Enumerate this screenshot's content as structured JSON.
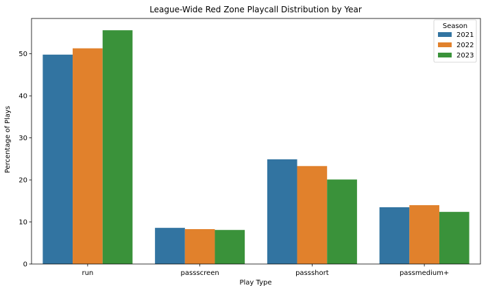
{
  "chart_data": {
    "type": "bar",
    "title": "League-Wide Red Zone Playcall Distribution by Year",
    "xlabel": "Play Type",
    "ylabel": "Percentage of Plays",
    "categories": [
      "run",
      "passscreen",
      "passshort",
      "passmedium+"
    ],
    "series": [
      {
        "name": "2021",
        "color": "#3274a1",
        "values": [
          49.8,
          8.6,
          24.9,
          13.5
        ]
      },
      {
        "name": "2022",
        "color": "#e1812c",
        "values": [
          51.3,
          8.3,
          23.3,
          14.0
        ]
      },
      {
        "name": "2023",
        "color": "#3a923a",
        "values": [
          55.6,
          8.1,
          20.1,
          12.4
        ]
      }
    ],
    "ylim": [
      0,
      58.4
    ],
    "yticks": [
      0,
      10,
      20,
      30,
      40,
      50
    ],
    "grid": false,
    "legend": {
      "title": "Season",
      "position": "top-right"
    }
  }
}
